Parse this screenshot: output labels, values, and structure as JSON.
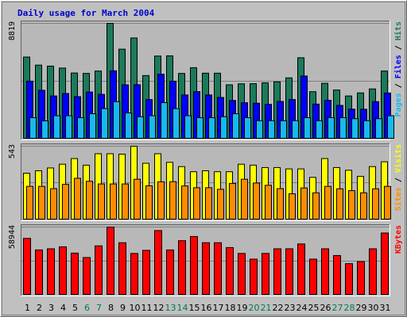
{
  "chart_data": {
    "title": "Daily usage for March 2004",
    "days": [
      "1",
      "2",
      "3",
      "4",
      "5",
      "6",
      "7",
      "8",
      "9",
      "10",
      "11",
      "12",
      "13",
      "14",
      "15",
      "16",
      "17",
      "18",
      "19",
      "20",
      "21",
      "22",
      "23",
      "24",
      "25",
      "26",
      "27",
      "28",
      "29",
      "30",
      "31"
    ],
    "weekend_days": [
      "6",
      "7",
      "13",
      "14",
      "20",
      "21",
      "27",
      "28"
    ],
    "colors": {
      "background": "#c0c0c0",
      "panel": "#b8b8b8",
      "title": "#0000cc",
      "hits": "#1b7a5a",
      "files": "#0000ff",
      "pages": "#19b8f0",
      "visits": "#ffff00",
      "sites": "#ff8c00",
      "kbytes": "#ff0000",
      "weekday_label": "#000000",
      "weekend_label": "#007a50"
    },
    "panels": [
      {
        "type": "bar",
        "ymax_label": "8819",
        "ymax": 8819,
        "legend": [
          {
            "text": "Pages",
            "color": "#19b8f0"
          },
          {
            "text": " / ",
            "color": "#000000"
          },
          {
            "text": "Files",
            "color": "#0000ff"
          },
          {
            "text": " / ",
            "color": "#000000"
          },
          {
            "text": "Hits",
            "color": "#1b7a5a"
          }
        ],
        "series": [
          {
            "name": "Hits",
            "color": "#1b7a5a",
            "values": [
              6235,
              5616,
              5540,
              5389,
              5011,
              4980,
              5161,
              8819,
              6839,
              7698,
              4813,
              6311,
              6328,
              4980,
              5418,
              4996,
              4996,
              4104,
              4181,
              4189,
              4257,
              4333,
              4637,
              6183,
              3575,
              4218,
              3705,
              3247,
              3484,
              3788,
              5161
            ]
          },
          {
            "name": "Files",
            "color": "#0000ff",
            "values": [
              4385,
              3682,
              3249,
              3438,
              3196,
              3552,
              3371,
              5179,
              4104,
              4112,
              2973,
              4916,
              4385,
              3325,
              3583,
              3325,
              3135,
              2905,
              2730,
              2692,
              2602,
              2828,
              2973,
              4780,
              2624,
              2917,
              2525,
              2237,
              2229,
              2813,
              3477
            ]
          },
          {
            "name": "Pages",
            "color": "#19b8f0",
            "values": [
              1580,
              1337,
              1732,
              1732,
              1580,
              1884,
              2277,
              2812,
              1944,
              1656,
              1732,
              2736,
              2277,
              1732,
              1580,
              1580,
              1656,
              1884,
              1580,
              1352,
              1352,
              1352,
              1352,
              1580,
              1352,
              1580,
              1580,
              1504,
              1352,
              1504,
              1732
            ]
          }
        ]
      },
      {
        "type": "bar",
        "ymax_label": "543",
        "ymax": 543,
        "legend": [
          {
            "text": "Sites",
            "color": "#ff8c00"
          },
          {
            "text": " / ",
            "color": "#000000"
          },
          {
            "text": "Visits",
            "color": "#ffff00"
          }
        ],
        "series": [
          {
            "name": "Visits",
            "color": "#ffff00",
            "values": [
              342,
              360,
              381,
              409,
              451,
              402,
              487,
              487,
              484,
              543,
              416,
              487,
              423,
              391,
              353,
              360,
              353,
              353,
              409,
              402,
              384,
              384,
              374,
              374,
              311,
              451,
              384,
              364,
              318,
              391,
              427
            ]
          },
          {
            "name": "Sites",
            "color": "#ff8c00",
            "values": [
              244,
              244,
              227,
              259,
              304,
              282,
              262,
              262,
              262,
              297,
              248,
              278,
              279,
              247,
              234,
              234,
              222,
              266,
              297,
              269,
              252,
              227,
              189,
              232,
              196,
              244,
              226,
              212,
              196,
              226,
              244
            ]
          }
        ]
      },
      {
        "type": "bar",
        "ymax_label": "58944",
        "ymax": 58944,
        "legend": [
          {
            "text": "KBytes",
            "color": "#ff0000"
          }
        ],
        "series": [
          {
            "name": "KBytes",
            "color": "#ff0000",
            "values": [
              49047,
              38913,
              39931,
              41650,
              36164,
              32276,
              42474,
              58944,
              45240,
              35847,
              38553,
              55869,
              38913,
              47029,
              50669,
              45240,
              45240,
              40971,
              35847,
              30860,
              35847,
              39931,
              39931,
              44162,
              30860,
              39931,
              34032,
              26939,
              28744,
              39931,
              53732
            ]
          }
        ]
      }
    ]
  }
}
